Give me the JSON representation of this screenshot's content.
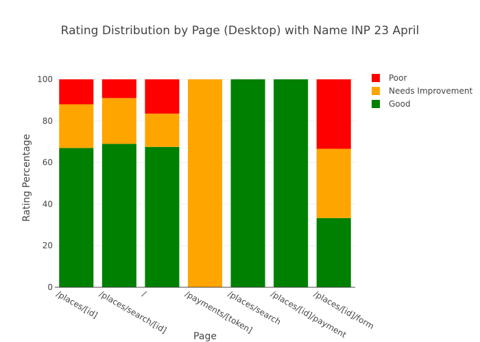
{
  "chart_data": {
    "type": "bar",
    "stacked": true,
    "title": "Rating Distribution by Page (Desktop) with Name INP 23 April",
    "xlabel": "Page",
    "ylabel": "Rating Percentage",
    "ylim": [
      0,
      100
    ],
    "yticks": [
      0,
      20,
      40,
      60,
      80,
      100
    ],
    "grid": true,
    "legend_position": "top-right",
    "categories": [
      "/places/[id]",
      "/places/search/[id]",
      "/",
      "/payments/[token]",
      "/places/search",
      "/places/[id]/payment",
      "/places/[id]/form"
    ],
    "series": [
      {
        "name": "Good",
        "color": "#008000",
        "values": [
          67,
          69,
          67.5,
          0,
          100,
          100,
          33.3
        ]
      },
      {
        "name": "Needs Improvement",
        "color": "#FFA500",
        "values": [
          21,
          22,
          16,
          100,
          0,
          0,
          33.3
        ]
      },
      {
        "name": "Poor",
        "color": "#FF0000",
        "values": [
          12,
          9,
          16.5,
          0,
          0,
          0,
          33.4
        ]
      }
    ],
    "legend_order": [
      "Poor",
      "Needs Improvement",
      "Good"
    ]
  }
}
